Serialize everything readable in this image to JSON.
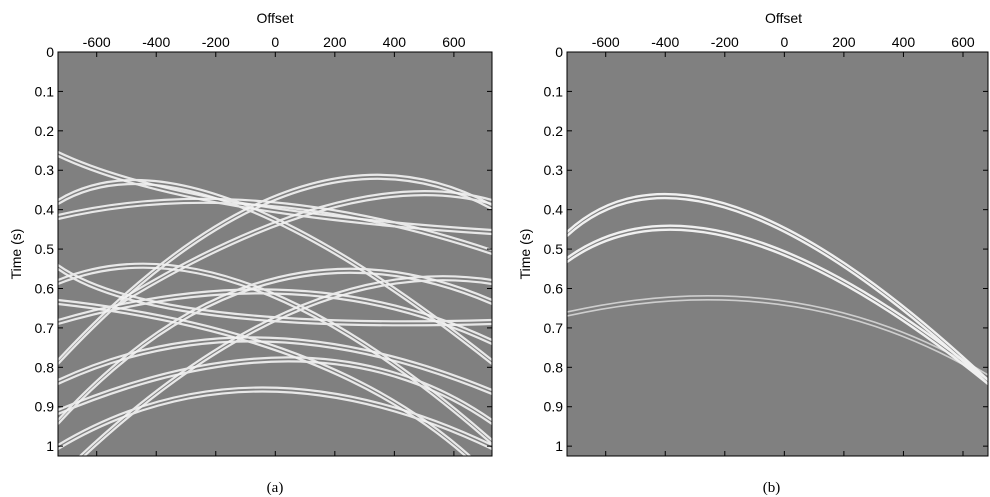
{
  "chart_data": [
    {
      "type": "image",
      "x_label": "Offset",
      "y_label": "Time (s)",
      "caption": "(a)",
      "xlim": [
        -730,
        728
      ],
      "ylim": [
        0,
        1.025
      ],
      "xticks": [
        -600,
        -400,
        -200,
        0,
        200,
        400,
        600
      ],
      "yticks": [
        0,
        0.1,
        0.2,
        0.3,
        0.4,
        0.5,
        0.6,
        0.7,
        0.8,
        0.9,
        1
      ]
    },
    {
      "type": "image",
      "x_label": "Offset",
      "y_label": "Time (s)",
      "caption": "(b)",
      "xlim": [
        -730,
        684
      ],
      "ylim": [
        0,
        1.025
      ],
      "xticks": [
        -600,
        -400,
        -200,
        0,
        200,
        400,
        600
      ],
      "yticks": [
        0,
        0.1,
        0.2,
        0.3,
        0.4,
        0.5,
        0.6,
        0.7,
        0.8,
        0.9,
        1
      ]
    }
  ]
}
